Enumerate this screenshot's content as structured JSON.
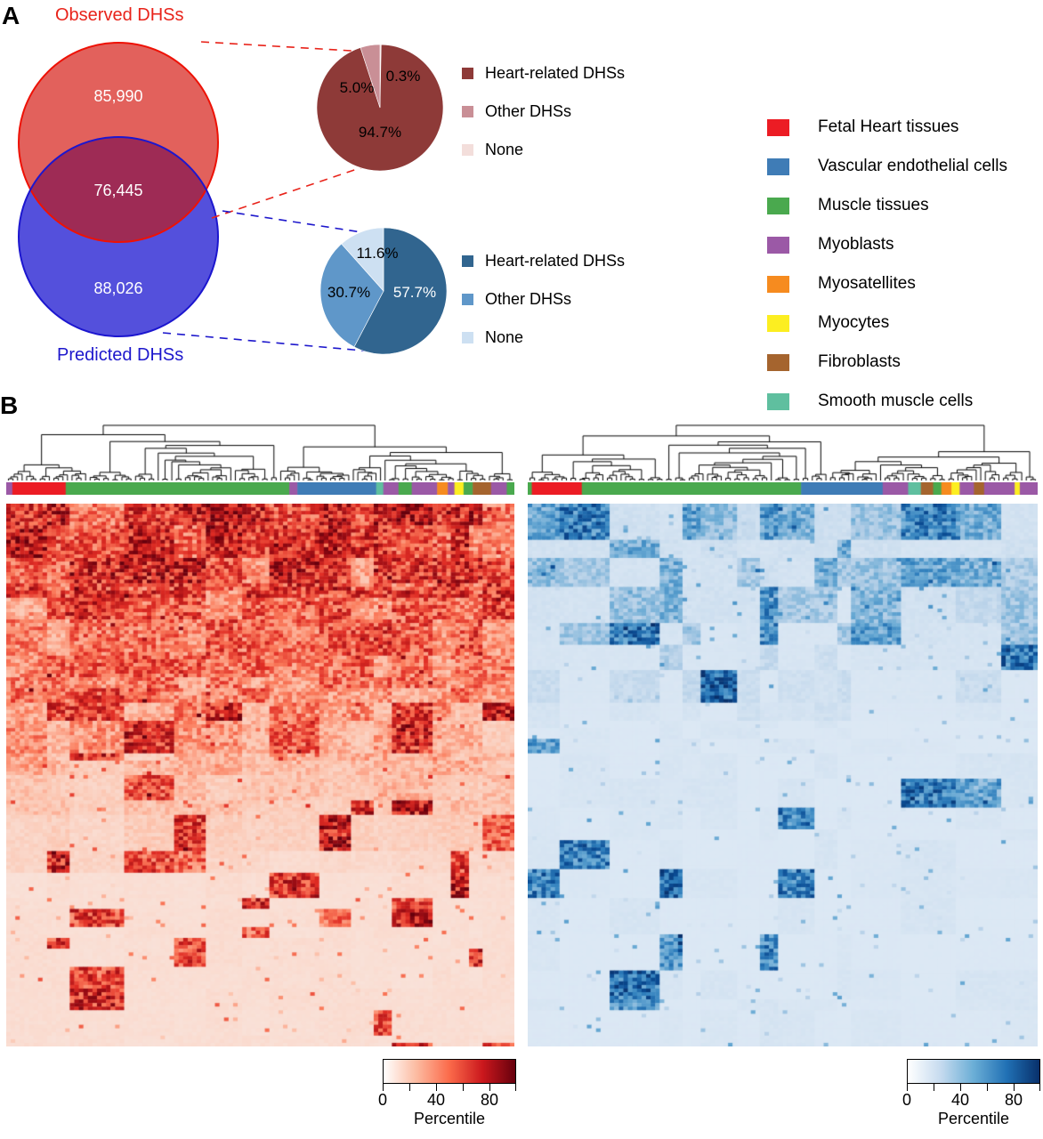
{
  "figure": {
    "panel_a_label": "A",
    "panel_b_label": "B"
  },
  "venn": {
    "top_label": "Observed DHSs",
    "bottom_label": "Predicted DHSs",
    "top_unique": "85,990",
    "overlap": "76,445",
    "bottom_unique": "88,026",
    "colors": {
      "top_fill": "#e2615c",
      "top_stroke": "#ee1105",
      "bottom_fill": "#5450dc",
      "bottom_stroke": "#1c16cf",
      "overlap_fill": "#9e2b55"
    }
  },
  "pies": [
    {
      "name": "observed-pie",
      "slices": [
        {
          "label": "Heart-related DHSs",
          "pct": 94.7,
          "value_text": "94.7%",
          "color": "#8e3a38"
        },
        {
          "label": "Other DHSs",
          "pct": 5.0,
          "value_text": "5.0%",
          "color": "#c98f96"
        },
        {
          "label": "None",
          "pct": 0.3,
          "value_text": "0.3%",
          "color": "#f3dedb"
        }
      ],
      "draw_order": [
        2,
        0,
        1
      ]
    },
    {
      "name": "predicted-pie",
      "slices": [
        {
          "label": "Heart-related DHSs",
          "pct": 57.7,
          "value_text": "57.7%",
          "color": "#31658f"
        },
        {
          "label": "Other DHSs",
          "pct": 30.7,
          "value_text": "30.7%",
          "color": "#5f97c9"
        },
        {
          "label": "None",
          "pct": 11.6,
          "value_text": "11.6%",
          "color": "#cde0f2"
        }
      ],
      "draw_order": [
        0,
        1,
        2
      ]
    }
  ],
  "cell_legend": [
    {
      "label": "Fetal Heart tissues",
      "color": "#ec1c24"
    },
    {
      "label": "Vascular endothelial cells",
      "color": "#3f7cb6"
    },
    {
      "label": "Muscle tissues",
      "color": "#4aa94e"
    },
    {
      "label": "Myoblasts",
      "color": "#9b59a6"
    },
    {
      "label": "Myosatellites",
      "color": "#f68b1f"
    },
    {
      "label": "Myocytes",
      "color": "#fcee21"
    },
    {
      "label": "Fibroblasts",
      "color": "#a5642e"
    },
    {
      "label": "Smooth muscle cells",
      "color": "#5fbf9f"
    }
  ],
  "heatmaps": [
    {
      "name": "observed-dhs-heatmap",
      "seed": 11,
      "style": "dense",
      "dendro_leaves": 112,
      "palette": [
        "#f9e4dc",
        "#fcc3ad",
        "#fb7c5c",
        "#e02c24",
        "#a50f15",
        "#67000d"
      ],
      "anno_segments": [
        [
          "#9b59a6",
          0.012
        ],
        [
          "#ec1c24",
          0.105
        ],
        [
          "#4aa94e",
          0.44
        ],
        [
          "#9b59a6",
          0.016
        ],
        [
          "#3f7cb6",
          0.155
        ],
        [
          "#5fbf9f",
          0.014
        ],
        [
          "#9b59a6",
          0.03
        ],
        [
          "#4aa94e",
          0.026
        ],
        [
          "#9b59a6",
          0.05
        ],
        [
          "#f68b1f",
          0.021
        ],
        [
          "#9b59a6",
          0.013
        ],
        [
          "#fcee21",
          0.018
        ],
        [
          "#4aa94e",
          0.018
        ],
        [
          "#a5642e",
          0.036
        ],
        [
          "#9b59a6",
          0.031
        ],
        [
          "#4aa94e",
          0.015
        ]
      ],
      "colorbar": {
        "tick_labels": [
          "0",
          "40",
          "80"
        ],
        "axis_label": "Percentile",
        "gradient": [
          "#ffffff",
          "#fcbba1",
          "#fb6a4a",
          "#cb181d",
          "#67000d"
        ]
      }
    },
    {
      "name": "predicted-dhs-heatmap",
      "seed": 29,
      "style": "sparse",
      "dendro_leaves": 112,
      "palette": [
        "#dce8f4",
        "#b4cfe7",
        "#6aaad4",
        "#2e7ebc",
        "#0a4c94",
        "#08306b"
      ],
      "anno_segments": [
        [
          "#4aa94e",
          0.008
        ],
        [
          "#ec1c24",
          0.098
        ],
        [
          "#4aa94e",
          0.43
        ],
        [
          "#3f7cb6",
          0.16
        ],
        [
          "#9b59a6",
          0.05
        ],
        [
          "#5fbf9f",
          0.025
        ],
        [
          "#a5642e",
          0.024
        ],
        [
          "#4aa94e",
          0.016
        ],
        [
          "#f68b1f",
          0.02
        ],
        [
          "#fcee21",
          0.016
        ],
        [
          "#9b59a6",
          0.028
        ],
        [
          "#a5642e",
          0.02
        ],
        [
          "#9b59a6",
          0.06
        ],
        [
          "#fcee21",
          0.01
        ],
        [
          "#9b59a6",
          0.035
        ]
      ],
      "colorbar": {
        "tick_labels": [
          "0",
          "40",
          "80"
        ],
        "axis_label": "Percentile",
        "gradient": [
          "#ffffff",
          "#c6dbef",
          "#6baed6",
          "#2171b5",
          "#08306b"
        ]
      }
    }
  ],
  "chart_data": [
    {
      "type": "venn",
      "title": "Observed vs predicted DHSs overlap",
      "sets": [
        {
          "label": "Observed DHSs",
          "unique": 85990
        },
        {
          "label": "Predicted DHSs",
          "unique": 88026
        }
      ],
      "intersection": 76445
    },
    {
      "type": "pie",
      "title": "Observed DHSs composition",
      "labels": [
        "Heart-related DHSs",
        "Other DHSs",
        "None"
      ],
      "values": [
        94.7,
        5.0,
        0.3
      ]
    },
    {
      "type": "pie",
      "title": "Predicted DHSs composition",
      "labels": [
        "Heart-related DHSs",
        "Other DHSs",
        "None"
      ],
      "values": [
        57.7,
        30.7,
        11.6
      ]
    },
    {
      "type": "heatmap",
      "title": "Observed DHSs signal percentiles",
      "colormap": "Reds",
      "colorbar_label": "Percentile",
      "colorbar_ticks": [
        0,
        40,
        80
      ],
      "legend_position": "bottom-right",
      "column_categories": [
        "Fetal Heart tissues",
        "Vascular endothelial cells",
        "Muscle tissues",
        "Myoblasts",
        "Myosatellites",
        "Myocytes",
        "Fibroblasts",
        "Smooth muscle cells"
      ]
    },
    {
      "type": "heatmap",
      "title": "Predicted DHSs signal percentiles",
      "colormap": "Blues",
      "colorbar_label": "Percentile",
      "colorbar_ticks": [
        0,
        40,
        80
      ],
      "legend_position": "bottom-right",
      "column_categories": [
        "Fetal Heart tissues",
        "Vascular endothelial cells",
        "Muscle tissues",
        "Myoblasts",
        "Myosatellites",
        "Myocytes",
        "Fibroblasts",
        "Smooth muscle cells"
      ]
    }
  ]
}
